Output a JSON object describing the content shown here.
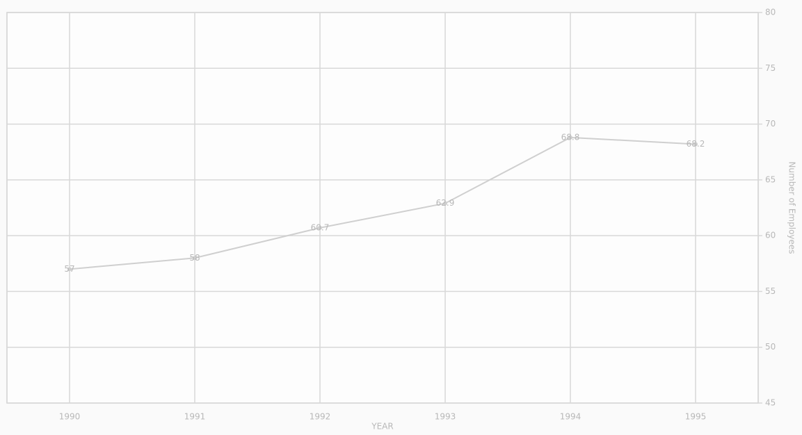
{
  "chart_data": {
    "type": "line",
    "categories": [
      "1990",
      "1991",
      "1992",
      "1993",
      "1994",
      "1995"
    ],
    "series": [
      {
        "name": "Employees",
        "color": "#cfcfcf",
        "values": [
          57,
          58,
          60.7,
          62.9,
          68.8,
          68.2
        ]
      }
    ],
    "ylim": [
      45,
      80
    ],
    "yticks": [
      45,
      50,
      55,
      60,
      65,
      70,
      75,
      80
    ],
    "xlabel": "YEAR",
    "ylabel": "Number of Employees",
    "grid": true,
    "y_axis_side": "right"
  }
}
